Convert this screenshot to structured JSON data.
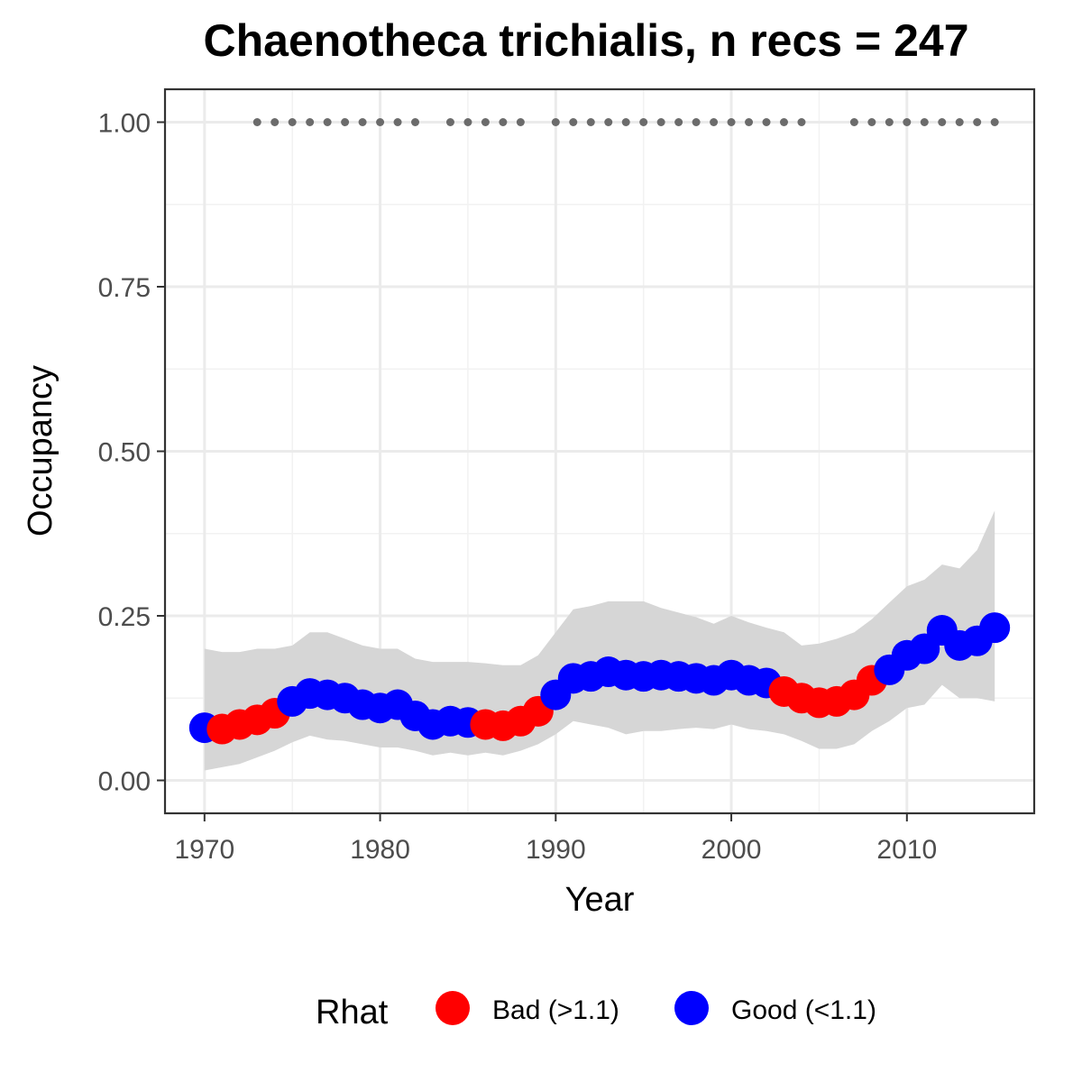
{
  "chart_data": {
    "type": "line",
    "title": "Chaenotheca trichialis, n recs = 247",
    "xlabel": "Year",
    "ylabel": "Occupancy",
    "xlim": [
      1967.75,
      2017.25
    ],
    "ylim": [
      -0.05,
      1.05
    ],
    "x_ticks": [
      1970,
      1980,
      1990,
      2000,
      2010
    ],
    "x_tick_labels": [
      "1970",
      "1980",
      "1990",
      "2000",
      "2010"
    ],
    "y_ticks": [
      0,
      0.25,
      0.5,
      0.75,
      1.0
    ],
    "y_tick_labels": [
      "0.00",
      "0.25",
      "0.50",
      "0.75",
      "1.00"
    ],
    "grid": true,
    "legend": {
      "title": "Rhat",
      "position": "bottom",
      "entries": [
        {
          "label": "Bad (>1.1)",
          "color": "#ff0000"
        },
        {
          "label": "Good (<1.1)",
          "color": "#0000ff"
        }
      ]
    },
    "colors": {
      "bad": "#ff0000",
      "good": "#0000ff",
      "ribbon": "#d6d6d6",
      "record_marks": "#6b6b6b"
    },
    "series": [
      {
        "name": "Rhat",
        "x": [
          1970,
          1971,
          1972,
          1973,
          1974,
          1975,
          1976,
          1977,
          1978,
          1979,
          1980,
          1981,
          1982,
          1983,
          1984,
          1985,
          1986,
          1987,
          1988,
          1989,
          1990,
          1991,
          1992,
          1993,
          1994,
          1995,
          1996,
          1997,
          1998,
          1999,
          2000,
          2001,
          2002,
          2003,
          2004,
          2005,
          2006,
          2007,
          2008,
          2009,
          2010,
          2011,
          2012,
          2013,
          2014,
          2015
        ],
        "y": [
          0.08,
          0.078,
          0.085,
          0.092,
          0.102,
          0.12,
          0.132,
          0.13,
          0.125,
          0.115,
          0.11,
          0.115,
          0.098,
          0.085,
          0.09,
          0.088,
          0.085,
          0.083,
          0.09,
          0.105,
          0.13,
          0.155,
          0.158,
          0.165,
          0.16,
          0.158,
          0.16,
          0.158,
          0.155,
          0.152,
          0.16,
          0.152,
          0.148,
          0.135,
          0.125,
          0.118,
          0.12,
          0.13,
          0.152,
          0.168,
          0.19,
          0.2,
          0.228,
          0.205,
          0.212,
          0.232
        ],
        "lower": [
          0.015,
          0.02,
          0.025,
          0.035,
          0.045,
          0.058,
          0.068,
          0.062,
          0.06,
          0.055,
          0.05,
          0.05,
          0.045,
          0.038,
          0.042,
          0.038,
          0.042,
          0.038,
          0.045,
          0.055,
          0.07,
          0.09,
          0.085,
          0.08,
          0.07,
          0.075,
          0.075,
          0.078,
          0.08,
          0.078,
          0.085,
          0.078,
          0.075,
          0.07,
          0.06,
          0.048,
          0.048,
          0.055,
          0.075,
          0.09,
          0.11,
          0.115,
          0.145,
          0.125,
          0.125,
          0.12
        ],
        "upper": [
          0.2,
          0.195,
          0.195,
          0.2,
          0.2,
          0.205,
          0.225,
          0.225,
          0.215,
          0.205,
          0.2,
          0.2,
          0.185,
          0.18,
          0.18,
          0.18,
          0.178,
          0.175,
          0.175,
          0.19,
          0.225,
          0.26,
          0.265,
          0.272,
          0.272,
          0.272,
          0.262,
          0.255,
          0.248,
          0.238,
          0.25,
          0.24,
          0.232,
          0.225,
          0.205,
          0.208,
          0.215,
          0.225,
          0.245,
          0.27,
          0.295,
          0.305,
          0.328,
          0.322,
          0.35,
          0.41
        ],
        "rhat": [
          "good",
          "bad",
          "bad",
          "bad",
          "bad",
          "good",
          "good",
          "good",
          "good",
          "good",
          "good",
          "good",
          "good",
          "good",
          "good",
          "good",
          "bad",
          "bad",
          "bad",
          "bad",
          "good",
          "good",
          "good",
          "good",
          "good",
          "good",
          "good",
          "good",
          "good",
          "good",
          "good",
          "good",
          "good",
          "bad",
          "bad",
          "bad",
          "bad",
          "bad",
          "bad",
          "good",
          "good",
          "good",
          "good",
          "good",
          "good",
          "good"
        ]
      }
    ],
    "record_years": [
      1973,
      1974,
      1975,
      1976,
      1977,
      1978,
      1979,
      1980,
      1981,
      1982,
      1984,
      1985,
      1986,
      1987,
      1988,
      1990,
      1991,
      1992,
      1993,
      1994,
      1995,
      1996,
      1997,
      1998,
      1999,
      2000,
      2001,
      2002,
      2003,
      2004,
      2007,
      2008,
      2009,
      2010,
      2011,
      2012,
      2013,
      2014,
      2015
    ],
    "record_y": 1.0
  }
}
